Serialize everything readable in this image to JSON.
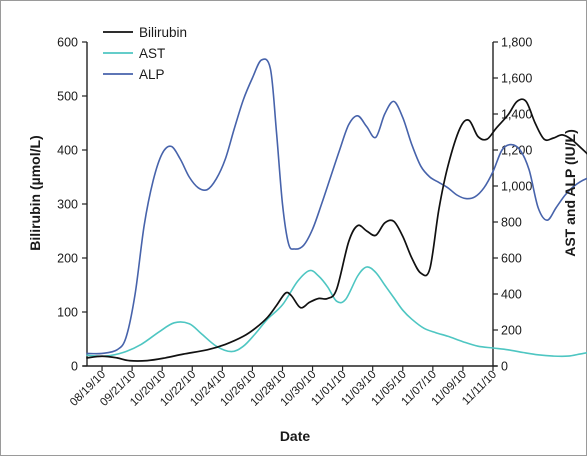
{
  "chart_data": {
    "type": "line",
    "title": "",
    "xlabel": "Date",
    "ylabel_left": "Bilirubin (µmol/L)",
    "ylabel_right": "AST and ALP (IU/L)",
    "x_ticks": [
      "08/19/10",
      "09/21/10",
      "10/20/10",
      "10/22/10",
      "10/24/10",
      "10/26/10",
      "10/28/10",
      "10/30/10",
      "11/01/10",
      "11/03/10",
      "11/05/10",
      "11/07/10",
      "11/09/10",
      "11/11/10"
    ],
    "y_left_ticks": [
      "0",
      "100",
      "200",
      "300",
      "400",
      "500",
      "600"
    ],
    "y_right_ticks": [
      "0",
      "200",
      "400",
      "600",
      "800",
      "1,000",
      "1,200",
      "1,400",
      "1,600",
      "1,800"
    ],
    "ylim_left": [
      0,
      600
    ],
    "ylim_right": [
      0,
      1800
    ],
    "legend_position": "top-left",
    "grid": false,
    "series": [
      {
        "name": "Bilirubin",
        "axis": "left",
        "color": "#111111",
        "points": [
          [
            0.0,
            15
          ],
          [
            0.5,
            18
          ],
          [
            1.0,
            15
          ],
          [
            1.4,
            10
          ],
          [
            2.0,
            10
          ],
          [
            2.6,
            15
          ],
          [
            3.2,
            22
          ],
          [
            4.0,
            30
          ],
          [
            4.6,
            40
          ],
          [
            5.2,
            55
          ],
          [
            5.6,
            70
          ],
          [
            6.0,
            90
          ],
          [
            6.3,
            112
          ],
          [
            6.6,
            135
          ],
          [
            6.8,
            130
          ],
          [
            7.1,
            108
          ],
          [
            7.4,
            118
          ],
          [
            7.7,
            125
          ],
          [
            8.0,
            125
          ],
          [
            8.3,
            142
          ],
          [
            8.7,
            230
          ],
          [
            9.0,
            260
          ],
          [
            9.3,
            250
          ],
          [
            9.6,
            242
          ],
          [
            9.9,
            265
          ],
          [
            10.2,
            268
          ],
          [
            10.5,
            240
          ],
          [
            10.8,
            200
          ],
          [
            11.1,
            172
          ],
          [
            11.4,
            180
          ],
          [
            11.7,
            290
          ],
          [
            12.0,
            370
          ],
          [
            12.4,
            440
          ],
          [
            12.7,
            455
          ],
          [
            13.0,
            425
          ],
          [
            13.3,
            420
          ],
          [
            13.6,
            440
          ],
          [
            14.0,
            465
          ],
          [
            14.3,
            490
          ],
          [
            14.6,
            490
          ],
          [
            14.9,
            450
          ],
          [
            15.2,
            420
          ],
          [
            15.5,
            422
          ],
          [
            15.8,
            428
          ],
          [
            16.1,
            420
          ],
          [
            16.5,
            400
          ],
          [
            16.9,
            380
          ],
          [
            17.3,
            365
          ],
          [
            17.5,
            360
          ]
        ]
      },
      {
        "name": "AST",
        "axis": "right",
        "color": "#4ec6c2",
        "points": [
          [
            0.0,
            60
          ],
          [
            0.6,
            55
          ],
          [
            1.2,
            75
          ],
          [
            1.8,
            120
          ],
          [
            2.4,
            190
          ],
          [
            2.9,
            240
          ],
          [
            3.4,
            235
          ],
          [
            3.8,
            180
          ],
          [
            4.3,
            110
          ],
          [
            4.8,
            80
          ],
          [
            5.2,
            110
          ],
          [
            5.6,
            180
          ],
          [
            6.0,
            260
          ],
          [
            6.5,
            340
          ],
          [
            7.0,
            470
          ],
          [
            7.4,
            530
          ],
          [
            7.7,
            500
          ],
          [
            8.0,
            440
          ],
          [
            8.3,
            360
          ],
          [
            8.6,
            370
          ],
          [
            9.0,
            500
          ],
          [
            9.3,
            550
          ],
          [
            9.6,
            520
          ],
          [
            9.9,
            450
          ],
          [
            10.2,
            380
          ],
          [
            10.5,
            310
          ],
          [
            10.8,
            260
          ],
          [
            11.2,
            210
          ],
          [
            11.6,
            185
          ],
          [
            12.0,
            165
          ],
          [
            12.5,
            135
          ],
          [
            13.0,
            110
          ],
          [
            13.5,
            100
          ],
          [
            14.0,
            90
          ],
          [
            14.5,
            75
          ],
          [
            15.0,
            62
          ],
          [
            15.5,
            55
          ],
          [
            16.0,
            55
          ],
          [
            16.5,
            70
          ],
          [
            17.0,
            80
          ],
          [
            17.5,
            85
          ]
        ]
      },
      {
        "name": "ALP",
        "axis": "right",
        "color": "#4763ab",
        "points": [
          [
            0.0,
            70
          ],
          [
            0.5,
            70
          ],
          [
            1.0,
            90
          ],
          [
            1.3,
            160
          ],
          [
            1.6,
            400
          ],
          [
            1.9,
            780
          ],
          [
            2.2,
            1030
          ],
          [
            2.5,
            1180
          ],
          [
            2.8,
            1220
          ],
          [
            3.1,
            1150
          ],
          [
            3.4,
            1050
          ],
          [
            3.7,
            990
          ],
          [
            4.0,
            980
          ],
          [
            4.3,
            1040
          ],
          [
            4.6,
            1150
          ],
          [
            4.9,
            1320
          ],
          [
            5.2,
            1480
          ],
          [
            5.5,
            1600
          ],
          [
            5.8,
            1700
          ],
          [
            6.1,
            1650
          ],
          [
            6.3,
            1300
          ],
          [
            6.5,
            900
          ],
          [
            6.7,
            680
          ],
          [
            6.9,
            650
          ],
          [
            7.2,
            670
          ],
          [
            7.5,
            760
          ],
          [
            7.8,
            900
          ],
          [
            8.1,
            1050
          ],
          [
            8.4,
            1200
          ],
          [
            8.7,
            1340
          ],
          [
            9.0,
            1390
          ],
          [
            9.3,
            1330
          ],
          [
            9.6,
            1270
          ],
          [
            9.9,
            1400
          ],
          [
            10.2,
            1470
          ],
          [
            10.5,
            1380
          ],
          [
            10.8,
            1230
          ],
          [
            11.1,
            1110
          ],
          [
            11.4,
            1050
          ],
          [
            11.7,
            1020
          ],
          [
            12.0,
            990
          ],
          [
            12.3,
            950
          ],
          [
            12.6,
            930
          ],
          [
            12.9,
            940
          ],
          [
            13.2,
            990
          ],
          [
            13.5,
            1080
          ],
          [
            13.8,
            1200
          ],
          [
            14.1,
            1230
          ],
          [
            14.4,
            1200
          ],
          [
            14.7,
            1090
          ],
          [
            15.0,
            880
          ],
          [
            15.3,
            810
          ],
          [
            15.6,
            880
          ],
          [
            15.9,
            950
          ],
          [
            16.2,
            1000
          ],
          [
            16.6,
            1040
          ],
          [
            17.0,
            1055
          ],
          [
            17.5,
            1050
          ]
        ]
      }
    ]
  }
}
